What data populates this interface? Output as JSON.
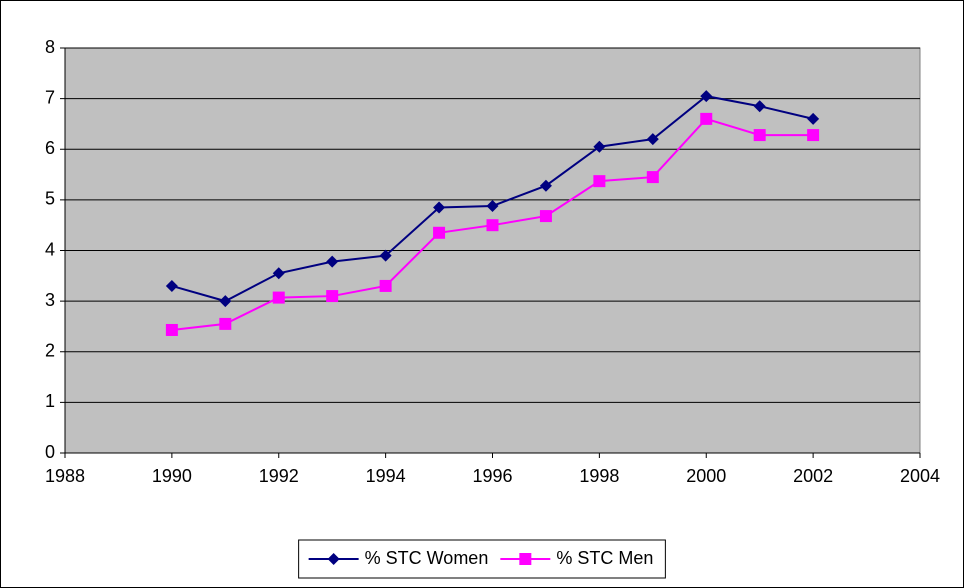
{
  "chart_data": {
    "type": "line",
    "x": [
      1990,
      1991,
      1992,
      1993,
      1994,
      1995,
      1996,
      1997,
      1998,
      1999,
      2000,
      2001,
      2002
    ],
    "series": [
      {
        "name": "% STC Women",
        "color": "#000080",
        "marker": "diamond",
        "values": [
          3.3,
          3.0,
          3.55,
          3.78,
          3.9,
          4.85,
          4.88,
          5.28,
          6.05,
          6.2,
          7.05,
          6.85,
          6.6
        ]
      },
      {
        "name": "% STC Men",
        "color": "#ff00ff",
        "marker": "square",
        "values": [
          2.43,
          2.55,
          3.07,
          3.1,
          3.3,
          4.35,
          4.5,
          4.68,
          5.37,
          5.45,
          6.6,
          6.28,
          6.28
        ]
      }
    ],
    "xlim": [
      1988,
      2004
    ],
    "xticks": [
      1988,
      1990,
      1992,
      1994,
      1996,
      1998,
      2000,
      2002,
      2004
    ],
    "ylim": [
      0,
      8
    ],
    "yticks": [
      0,
      1,
      2,
      3,
      4,
      5,
      6,
      7,
      8
    ],
    "grid": true,
    "legend": "bottom"
  }
}
